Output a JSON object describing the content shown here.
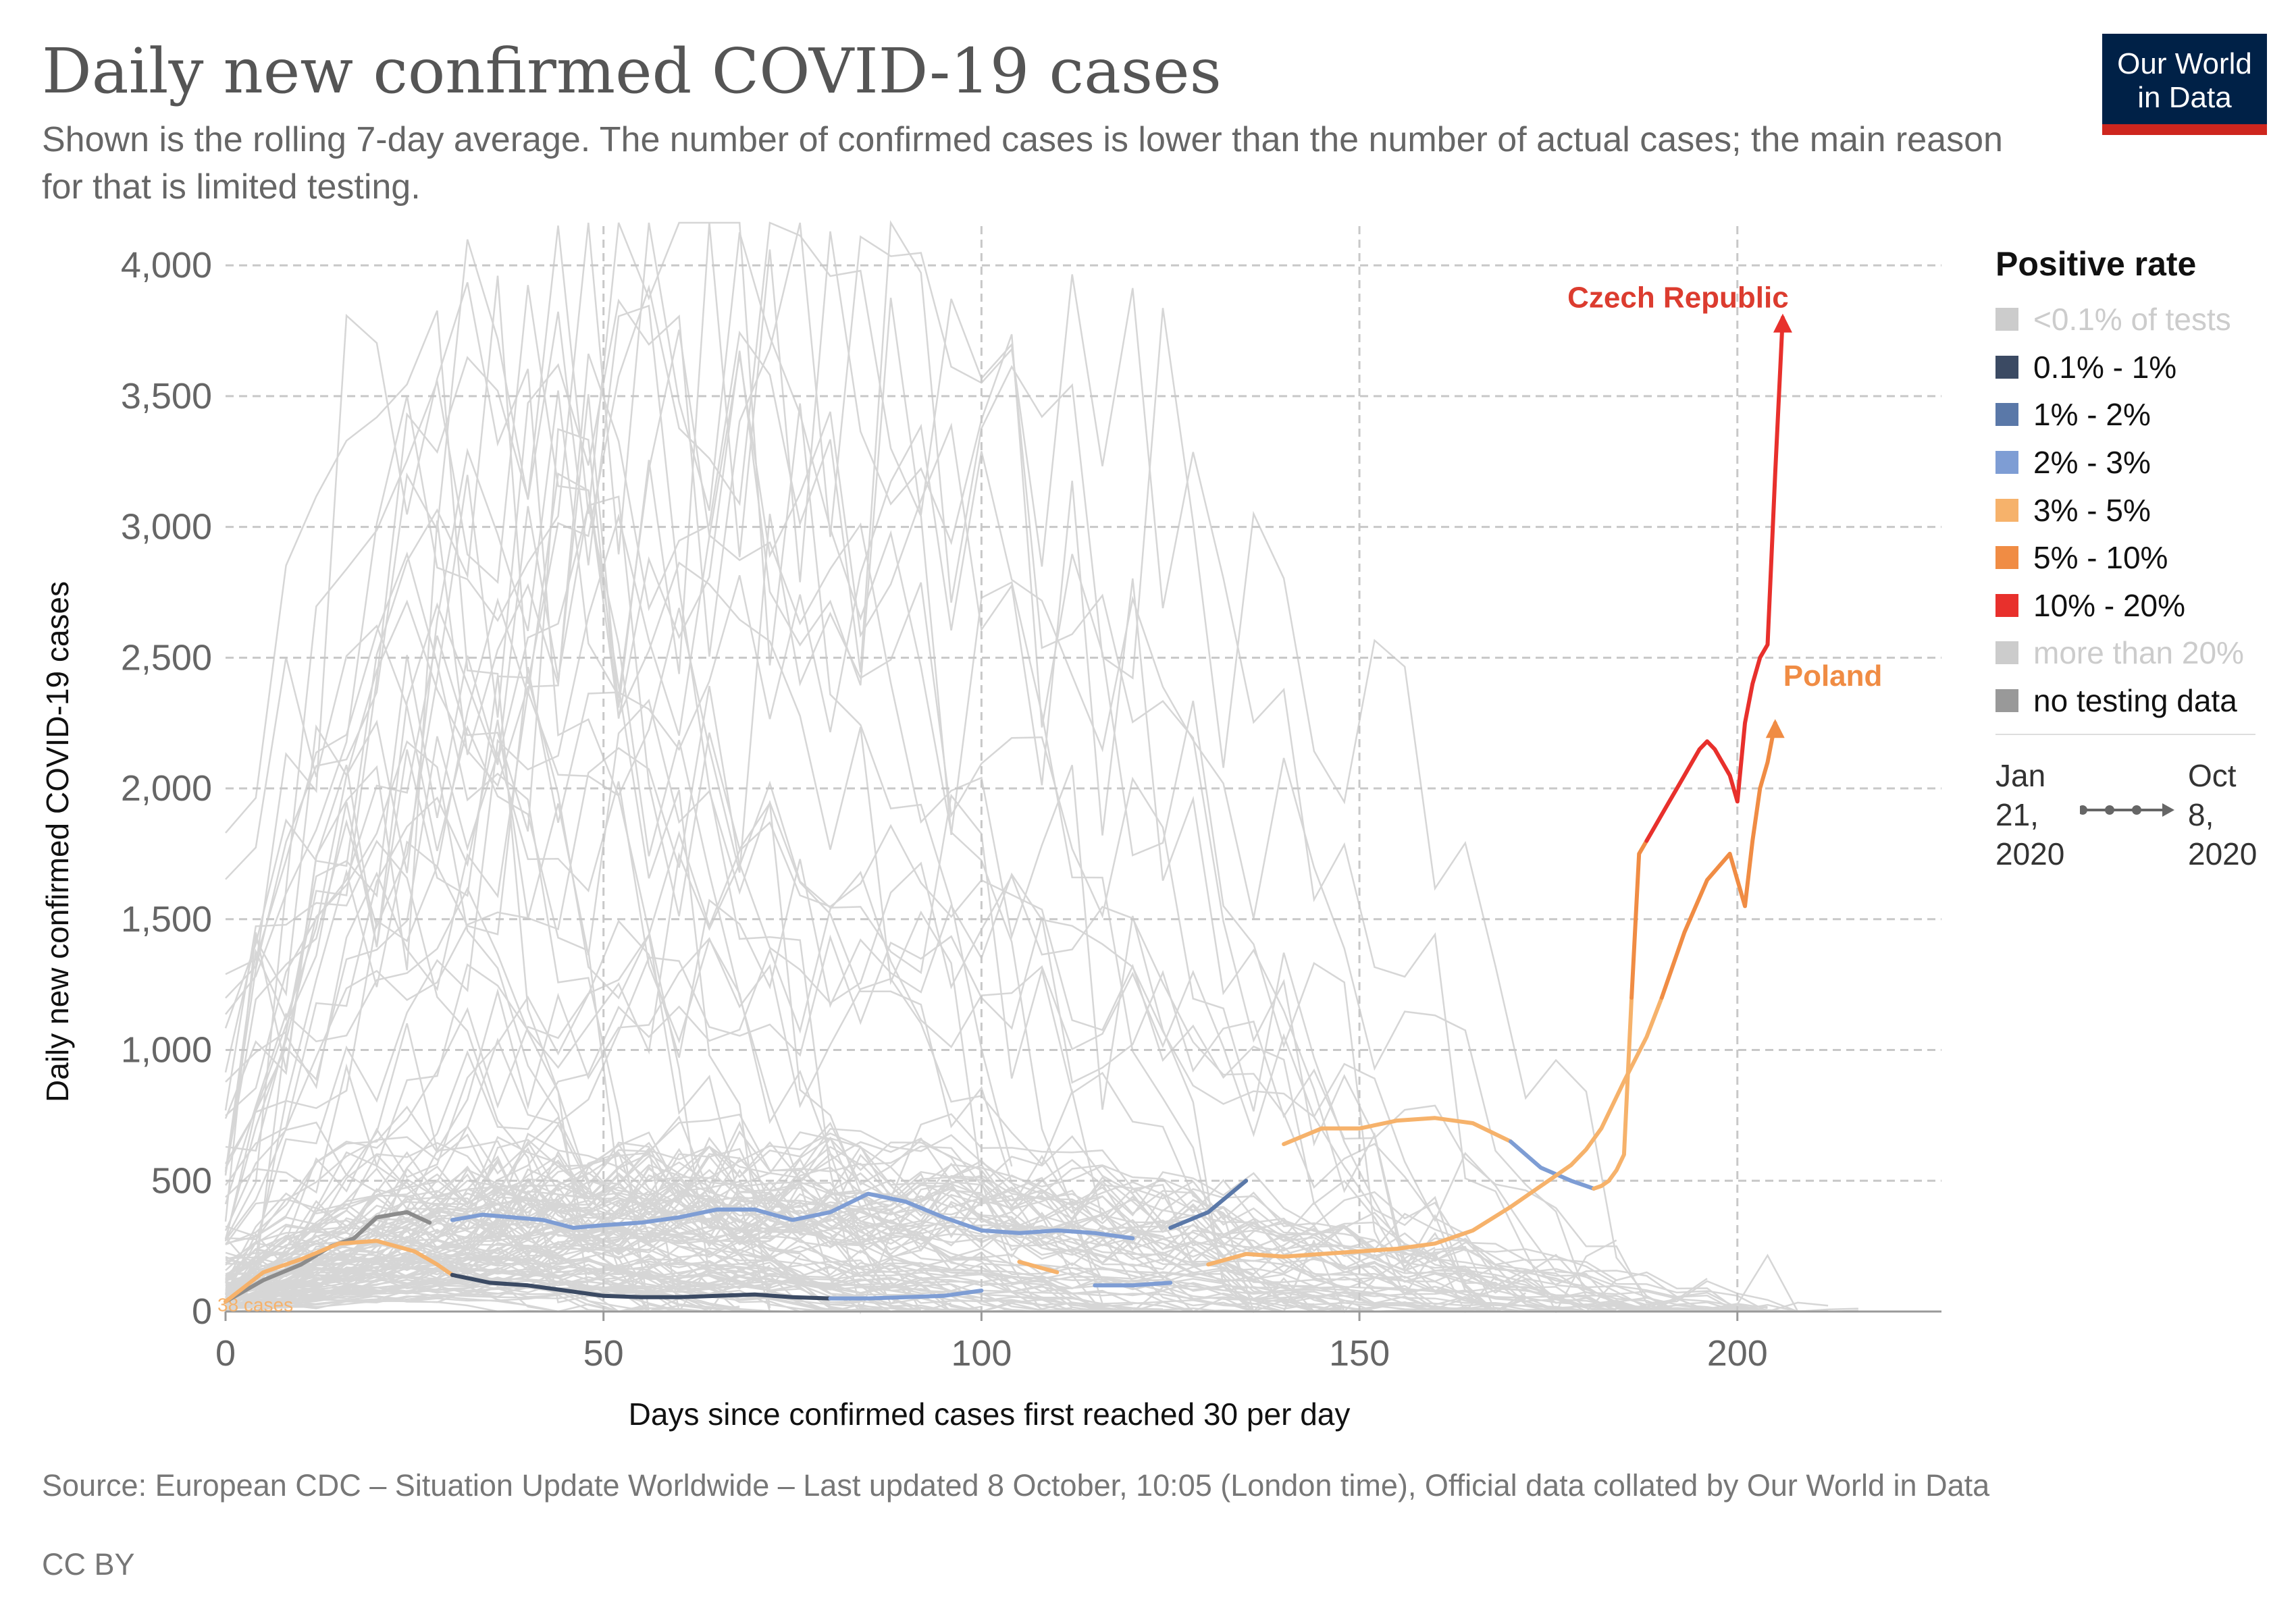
{
  "header": {
    "title": "Daily new confirmed COVID-19 cases",
    "subtitle": "Shown is the rolling 7-day average. The number of confirmed cases is lower than the number of actual cases; the main reason for that is limited testing."
  },
  "logo": {
    "line1": "Our World",
    "line2": "in Data"
  },
  "legend": {
    "title": "Positive rate",
    "items": [
      {
        "label": "<0.1% of tests",
        "color": "#cccccc",
        "muted": true
      },
      {
        "label": "0.1% - 1%",
        "color": "#3b4a63",
        "muted": false
      },
      {
        "label": "1% - 2%",
        "color": "#5a78a8",
        "muted": false
      },
      {
        "label": "2% - 3%",
        "color": "#7e9dd4",
        "muted": false
      },
      {
        "label": "3% - 5%",
        "color": "#f6b26b",
        "muted": false
      },
      {
        "label": "5% - 10%",
        "color": "#f08c44",
        "muted": false
      },
      {
        "label": "10% - 20%",
        "color": "#e8302c",
        "muted": false
      },
      {
        "label": "more than 20%",
        "color": "#cccccc",
        "muted": true
      },
      {
        "label": "no testing data",
        "color": "#999999",
        "muted": false
      }
    ]
  },
  "timeline": {
    "start": "Jan\n21,\n2020",
    "end": "Oct\n8,\n2020"
  },
  "footer": {
    "source": "Source: European CDC – Situation Update Worldwide – Last updated 8 October, 10:05 (London time), Official data collated by Our World in Data",
    "license": "CC BY"
  },
  "chart_data": {
    "type": "line",
    "title": "Daily new confirmed COVID-19 cases",
    "xlabel": "Days since confirmed cases first reached 30 per day",
    "ylabel": "Daily new confirmed COVID-19 cases",
    "xlim": [
      0,
      226
    ],
    "ylim": [
      0,
      4150
    ],
    "xticks": [
      0,
      50,
      100,
      150,
      200
    ],
    "xtick_labels": [
      "0",
      "50",
      "100",
      "150",
      "200"
    ],
    "yticks": [
      0,
      500,
      1000,
      1500,
      2000,
      2500,
      3000,
      3500,
      4000
    ],
    "ytick_labels": [
      "0",
      "500",
      "1,000",
      "1,500",
      "2,000",
      "2,500",
      "3,000",
      "3,500",
      "4,000"
    ],
    "grid": true,
    "start_annotation": "38 cases",
    "series": [
      {
        "name": "Czech Republic",
        "label_color": "#dc3c2f",
        "x": [
          0,
          5,
          10,
          14,
          17,
          20,
          24,
          27,
          30,
          34,
          38,
          42,
          46,
          50,
          55,
          60,
          65,
          70,
          75,
          80,
          85,
          90,
          95,
          100,
          105,
          110,
          115,
          120,
          125,
          130,
          135,
          140,
          145,
          150,
          155,
          160,
          165,
          170,
          174,
          178,
          180,
          181,
          182,
          183,
          184,
          185,
          186,
          187,
          188,
          189,
          190,
          191,
          192,
          193,
          194,
          195,
          196,
          197,
          198,
          199,
          200,
          201,
          202,
          203,
          204,
          205,
          206
        ],
        "values": [
          38,
          120,
          180,
          250,
          280,
          360,
          380,
          340,
          350,
          370,
          360,
          350,
          320,
          330,
          340,
          360,
          390,
          390,
          350,
          380,
          450,
          420,
          360,
          310,
          300,
          310,
          300,
          280,
          320,
          380,
          500,
          640,
          700,
          700,
          730,
          740,
          720,
          650,
          550,
          500,
          480,
          470,
          480,
          500,
          540,
          600,
          1200,
          1750,
          1800,
          1850,
          1900,
          1950,
          2000,
          2050,
          2100,
          2150,
          2180,
          2150,
          2100,
          2050,
          1950,
          2250,
          2400,
          2500,
          2550,
          3200,
          3800
        ],
        "segments": [
          {
            "from": 0,
            "to": 28,
            "rate": "no testing data",
            "color": "#8c8c8c"
          },
          {
            "from": 28,
            "to": 122,
            "rate": "2% - 3%",
            "color": "#7e9dd4"
          },
          {
            "from": 122,
            "to": 138,
            "rate": "1% - 2%",
            "color": "#5a78a8"
          },
          {
            "from": 138,
            "to": 170,
            "rate": "3% - 5%",
            "color": "#f6b26b"
          },
          {
            "from": 170,
            "to": 181,
            "rate": "2% - 3%",
            "color": "#7e9dd4"
          },
          {
            "from": 181,
            "to": 186,
            "rate": "3% - 5%",
            "color": "#f6b26b"
          },
          {
            "from": 186,
            "to": 188,
            "rate": "5% - 10%",
            "color": "#f08c44"
          },
          {
            "from": 188,
            "to": 206,
            "rate": "10% - 20%",
            "color": "#e8302c"
          }
        ]
      },
      {
        "name": "Poland",
        "label_color": "#f08c44",
        "x": [
          0,
          5,
          10,
          15,
          20,
          25,
          28,
          30,
          35,
          40,
          45,
          50,
          55,
          60,
          65,
          70,
          75,
          80,
          85,
          90,
          95,
          100,
          105,
          110,
          115,
          120,
          125,
          130,
          135,
          140,
          145,
          150,
          155,
          160,
          165,
          170,
          175,
          178,
          180,
          182,
          185,
          188,
          190,
          193,
          196,
          199,
          200,
          201,
          202,
          203,
          204,
          205
        ],
        "values": [
          38,
          150,
          200,
          260,
          270,
          230,
          180,
          140,
          110,
          100,
          80,
          60,
          55,
          55,
          60,
          65,
          55,
          50,
          50,
          55,
          60,
          80,
          190,
          150,
          100,
          100,
          110,
          180,
          220,
          210,
          220,
          230,
          240,
          260,
          310,
          400,
          500,
          560,
          620,
          700,
          880,
          1050,
          1200,
          1450,
          1650,
          1750,
          1650,
          1550,
          1800,
          2000,
          2100,
          2250
        ],
        "segments": [
          {
            "from": 0,
            "to": 30,
            "rate": "3% - 5%",
            "color": "#f6b26b"
          },
          {
            "from": 30,
            "to": 80,
            "rate": "0.1% - 1%",
            "color": "#3b4a63"
          },
          {
            "from": 80,
            "to": 103,
            "rate": "2% - 3%",
            "color": "#7e9dd4"
          },
          {
            "from": 103,
            "to": 113,
            "rate": "3% - 5%",
            "color": "#f6b26b"
          },
          {
            "from": 113,
            "to": 127,
            "rate": "2% - 3%",
            "color": "#7e9dd4"
          },
          {
            "from": 127,
            "to": 190,
            "rate": "3% - 5%",
            "color": "#f6b26b"
          },
          {
            "from": 190,
            "to": 205,
            "rate": "5% - 10%",
            "color": "#f08c44"
          }
        ]
      }
    ]
  }
}
